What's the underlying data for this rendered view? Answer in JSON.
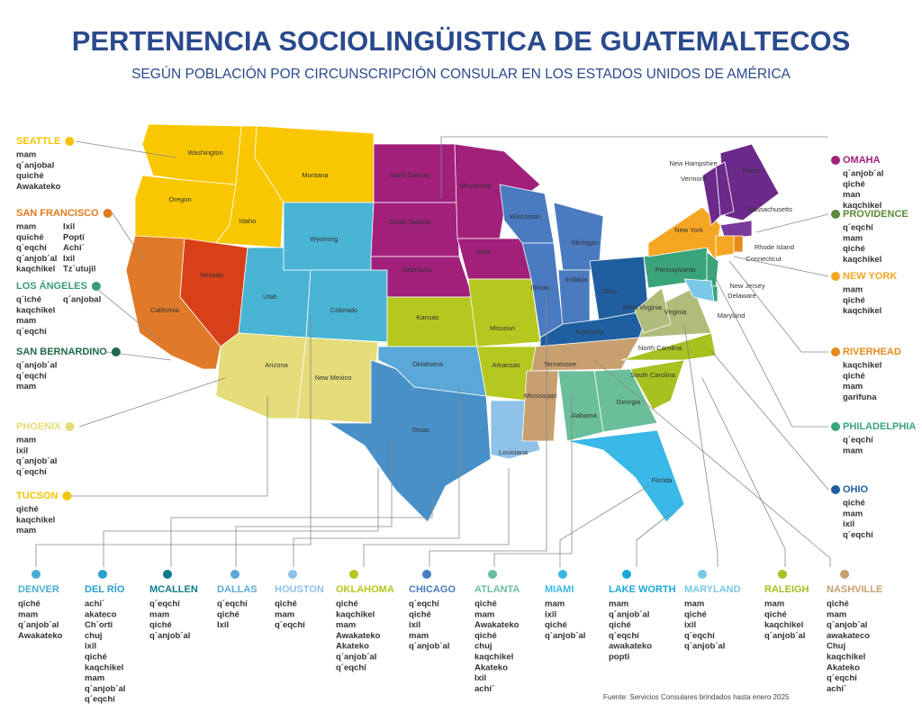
{
  "title": "PERTENENCIA SOCIOLINGÜISTICA DE GUATEMALTECOS",
  "subtitle": "SEGÚN POBLACIÓN POR CIRCUNSCRIPCIÓN CONSULAR EN LOS ESTADOS UNIDOS DE AMÉRICA",
  "source": "Fuente:  Servicios Consulares brindados hasta enero 2025",
  "consulates": [
    {
      "name": "SEATTLE",
      "color": "#f5c400",
      "languages": [
        "mam",
        "q´anjobal",
        "quiché",
        "Awakateko"
      ]
    },
    {
      "name": "SAN FRANCISCO",
      "color": "#e07b20",
      "languages": [
        "mam",
        "quiché",
        "q´eqchí",
        "q´anjob´al",
        "kaqchikel"
      ],
      "languages_2": [
        "Ixil",
        "Poptí",
        "Achi´",
        "Ixil",
        "Tz´utujil"
      ]
    },
    {
      "name": "LOS ÁNGELES",
      "color": "#3a9a7a",
      "languages": [
        "q´iché",
        "kaqchikel",
        "mam",
        "q´eqchí"
      ],
      "languages_2": [
        "q´anjobal"
      ]
    },
    {
      "name": "SAN BERNARDINO",
      "color": "#1f6b45",
      "languages": [
        "q´anjob´al",
        "q´eqchí",
        "mam"
      ]
    },
    {
      "name": "PHOENIX",
      "color": "#e5dc7a",
      "languages": [
        "mam",
        "ixil",
        "q´anjob´al",
        "q´eqchí"
      ]
    },
    {
      "name": "TUCSON",
      "color": "#f5c400",
      "languages": [
        "qiché",
        "kaqchikel",
        "mam"
      ]
    },
    {
      "name": "OMAHA",
      "color": "#a0207a",
      "languages": [
        "q´anjob´al",
        "qiché",
        "man",
        "kaqchikel"
      ]
    },
    {
      "name": "PROVIDENCE",
      "color": "#5a8a3a",
      "languages": [
        "q´eqchí",
        "mam",
        "qiché",
        "kaqchikel"
      ]
    },
    {
      "name": "NEW YORK",
      "color": "#f5a623",
      "languages": [
        "mam",
        "qiché",
        "kaqchikel"
      ]
    },
    {
      "name": "RIVERHEAD",
      "color": "#e8891c",
      "languages": [
        "kaqchikel",
        "qiché",
        "mam",
        "garifuna"
      ]
    },
    {
      "name": "PHILADELPHIA",
      "color": "#3aa37a",
      "languages": [
        "q´eqchí",
        "mam"
      ]
    },
    {
      "name": "OHIO",
      "color": "#1f5fa0",
      "languages": [
        "qiché",
        "mam",
        "ixil",
        "q´eqchí"
      ]
    },
    {
      "name": "DENVER",
      "color": "#4aaed0",
      "languages": [
        "qiché",
        "mam",
        "q´anjob´al",
        "Awakateko"
      ]
    },
    {
      "name": "DEL RÍO",
      "color": "#2aa0d0",
      "languages": [
        "achi´",
        "akateco",
        "Ch´orti",
        "chuj",
        "ixil",
        "qiché",
        "kaqchikel",
        "mam",
        "q´anjob´al",
        "q´eqchí"
      ]
    },
    {
      "name": "MCALLEN",
      "color": "#0e7a8a",
      "languages": [
        "q´eqchí",
        "mam",
        "qiché",
        "q´anjob´al"
      ]
    },
    {
      "name": "DALLAS",
      "color": "#5aa8d8",
      "languages": [
        "q´eqchí",
        "qiché",
        "Ixil"
      ]
    },
    {
      "name": "HOUSTON",
      "color": "#8ec2e8",
      "languages": [
        "qiché",
        "mam",
        "q´eqchí"
      ]
    },
    {
      "name": "OKLAHOMA",
      "color": "#b5c820",
      "languages": [
        "qiché",
        "kaqchikel",
        "mam",
        "Awakateko",
        "Akateko",
        "q´anjob´al",
        "q´eqchí"
      ]
    },
    {
      "name": "CHICAGO",
      "color": "#4a7ac0",
      "languages": [
        "q´eqchí",
        "qiché",
        "ixil",
        "mam",
        "q´anjob´al"
      ]
    },
    {
      "name": "ATLANTA",
      "color": "#6abf9a",
      "languages": [
        "qiché",
        "mam",
        "Awakateko",
        "qiché",
        "chuj",
        "kaqchikel",
        "Akateko",
        "Ixil",
        "achi´"
      ]
    },
    {
      "name": "MIAMI",
      "color": "#3ab8e8",
      "languages": [
        "mam",
        "ixil",
        "qiché",
        "q´anjob´al"
      ]
    },
    {
      "name": "LAKE WORTH",
      "color": "#1aa8d8",
      "languages": [
        "mam",
        "q´anjob´al",
        "qiché",
        "q´eqchí",
        "awakateko",
        "popti"
      ]
    },
    {
      "name": "MARYLAND",
      "color": "#7ac8e8",
      "languages": [
        "mam",
        "qiché",
        "ixil",
        "q´eqchí",
        "q´anjob´al"
      ]
    },
    {
      "name": "RALEIGH",
      "color": "#a8c020",
      "languages": [
        "mam",
        "qiché",
        "kaqchikel",
        "q´anjob´al"
      ]
    },
    {
      "name": "NASHVILLE",
      "color": "#c8a070",
      "languages": [
        "qiché",
        "mam",
        "q´anjob´al",
        "awakateco",
        "Chuj",
        "kaqchikel",
        "Akateko",
        "q´eqchí",
        "achi´"
      ]
    }
  ],
  "map": {
    "states": [
      "Washington",
      "Oregon",
      "Idaho",
      "Montana",
      "California",
      "Nevada",
      "Utah",
      "Wyoming",
      "Colorado",
      "Arizona",
      "New Mexico",
      "North Dakota",
      "South Dakota",
      "Nebraska",
      "Kansas",
      "Oklahoma",
      "Texas",
      "Minnesota",
      "Iowa",
      "Missouri",
      "Arkansas",
      "Louisiana",
      "Wisconsin",
      "Illinois",
      "Michigan",
      "Indiana",
      "Ohio",
      "Kentucky",
      "Tennessee",
      "Mississippi",
      "Alabama",
      "Georgia",
      "Florida",
      "South Carolina",
      "North Carolina",
      "Virginia",
      "West Virginia",
      "Pennsylvania",
      "New York",
      "Maine",
      "New Hampshire",
      "Vermont",
      "Massachusetts",
      "Rhode Island",
      "Connecticut",
      "New Jersey",
      "Delaware",
      "Maryland"
    ]
  }
}
